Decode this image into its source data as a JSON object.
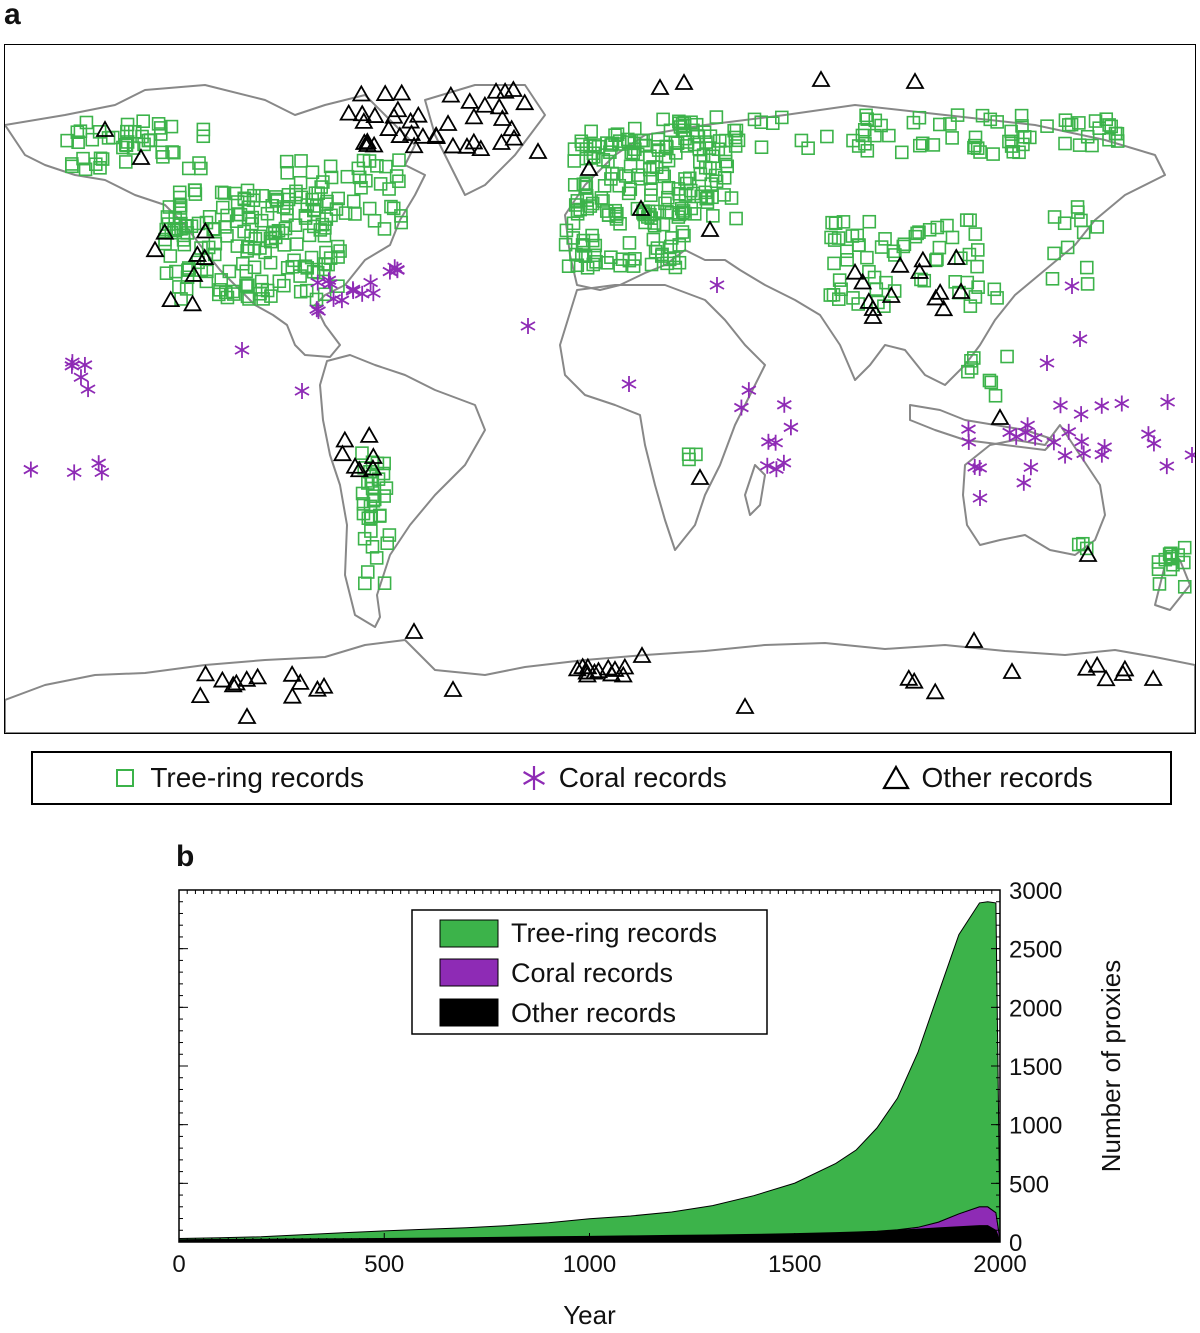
{
  "panel_a": {
    "label": "a",
    "legend": [
      {
        "label": "Tree-ring records",
        "symbol": "square",
        "color": "#3cb34a"
      },
      {
        "label": "Coral records",
        "symbol": "asterisk",
        "color": "#8e2bb5"
      },
      {
        "label": "Other records",
        "symbol": "triangle",
        "color": "#000000"
      }
    ],
    "land_color": "#888888"
  },
  "panel_b": {
    "label": "b"
  },
  "chart_data": {
    "type": "area",
    "stacked": true,
    "xlabel": "Year",
    "ylabel": "Number of proxies",
    "xlim": [
      0,
      2000
    ],
    "ylim": [
      0,
      3000
    ],
    "x_ticks": [
      0,
      500,
      1000,
      1500,
      2000
    ],
    "y_ticks": [
      0,
      500,
      1000,
      1500,
      2000,
      2500,
      3000
    ],
    "y_axis_side": "right",
    "legend_position": "top-center",
    "x": [
      0,
      100,
      200,
      300,
      400,
      500,
      600,
      700,
      800,
      900,
      1000,
      1100,
      1200,
      1300,
      1400,
      1500,
      1600,
      1650,
      1700,
      1750,
      1800,
      1850,
      1900,
      1950,
      1970,
      1990,
      2000
    ],
    "series": [
      {
        "name": "Other records",
        "color": "#000000",
        "values": [
          20,
          22,
          24,
          26,
          28,
          30,
          33,
          36,
          40,
          44,
          48,
          52,
          56,
          60,
          65,
          72,
          80,
          85,
          90,
          100,
          110,
          120,
          130,
          140,
          140,
          100,
          10
        ]
      },
      {
        "name": "Coral records",
        "color": "#8e2bb5",
        "values": [
          0,
          0,
          0,
          0,
          0,
          0,
          0,
          0,
          0,
          0,
          0,
          0,
          0,
          0,
          0,
          0,
          0,
          0,
          2,
          5,
          15,
          50,
          110,
          160,
          160,
          150,
          10
        ]
      },
      {
        "name": "Tree-ring records",
        "color": "#3cb34a",
        "values": [
          10,
          15,
          20,
          35,
          50,
          65,
          75,
          85,
          100,
          120,
          150,
          170,
          200,
          250,
          330,
          430,
          590,
          700,
          880,
          1120,
          1490,
          1950,
          2380,
          2590,
          2600,
          2640,
          100
        ]
      }
    ]
  }
}
